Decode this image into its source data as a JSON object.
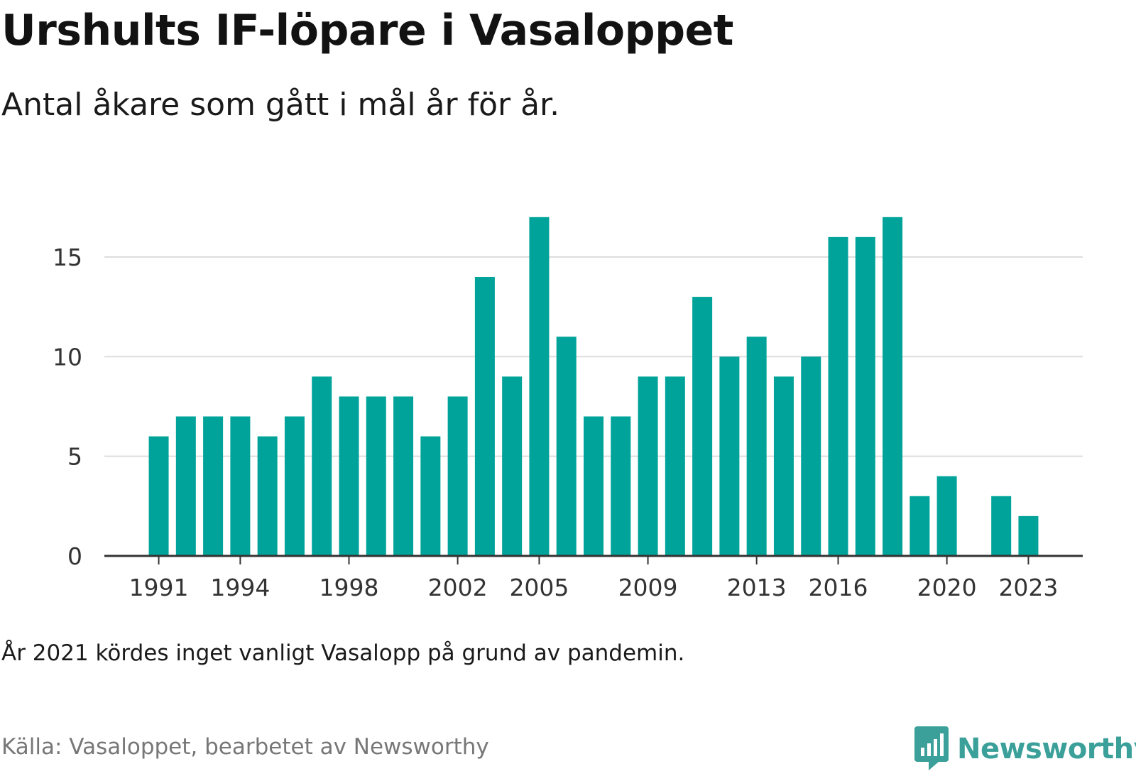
{
  "header": {
    "title": "Urshults IF-löpare i Vasaloppet",
    "subtitle": "Antal åkare som gått i mål år för år."
  },
  "footer": {
    "note": "År 2021 kördes inget vanligt Vasalopp på grund av pandemin.",
    "source": "Källa: Vasaloppet, bearbetet av Newsworthy",
    "brand": "Newsworthy"
  },
  "colors": {
    "bar": "#00a39a",
    "grid": "#dddddd",
    "axis": "#333333",
    "brand": "#3aa099"
  },
  "chart_data": {
    "type": "bar",
    "categories": [
      1991,
      1992,
      1993,
      1994,
      1995,
      1996,
      1997,
      1998,
      1999,
      2000,
      2001,
      2002,
      2003,
      2004,
      2005,
      2006,
      2007,
      2008,
      2009,
      2010,
      2011,
      2012,
      2013,
      2014,
      2015,
      2016,
      2017,
      2018,
      2019,
      2020,
      2021,
      2022,
      2023
    ],
    "values": [
      6,
      7,
      7,
      7,
      6,
      7,
      9,
      8,
      8,
      8,
      6,
      8,
      14,
      9,
      17,
      11,
      7,
      7,
      9,
      9,
      13,
      10,
      11,
      9,
      10,
      16,
      16,
      17,
      3,
      4,
      null,
      3,
      2
    ],
    "x_tick_labels": [
      "1991",
      "1994",
      "1998",
      "2002",
      "2005",
      "2009",
      "2013",
      "2016",
      "2020",
      "2023"
    ],
    "y_ticks": [
      0,
      5,
      10,
      15
    ],
    "ylim": [
      0,
      17
    ],
    "xlim": [
      1989,
      2025
    ],
    "grid": true,
    "legend": "none"
  }
}
